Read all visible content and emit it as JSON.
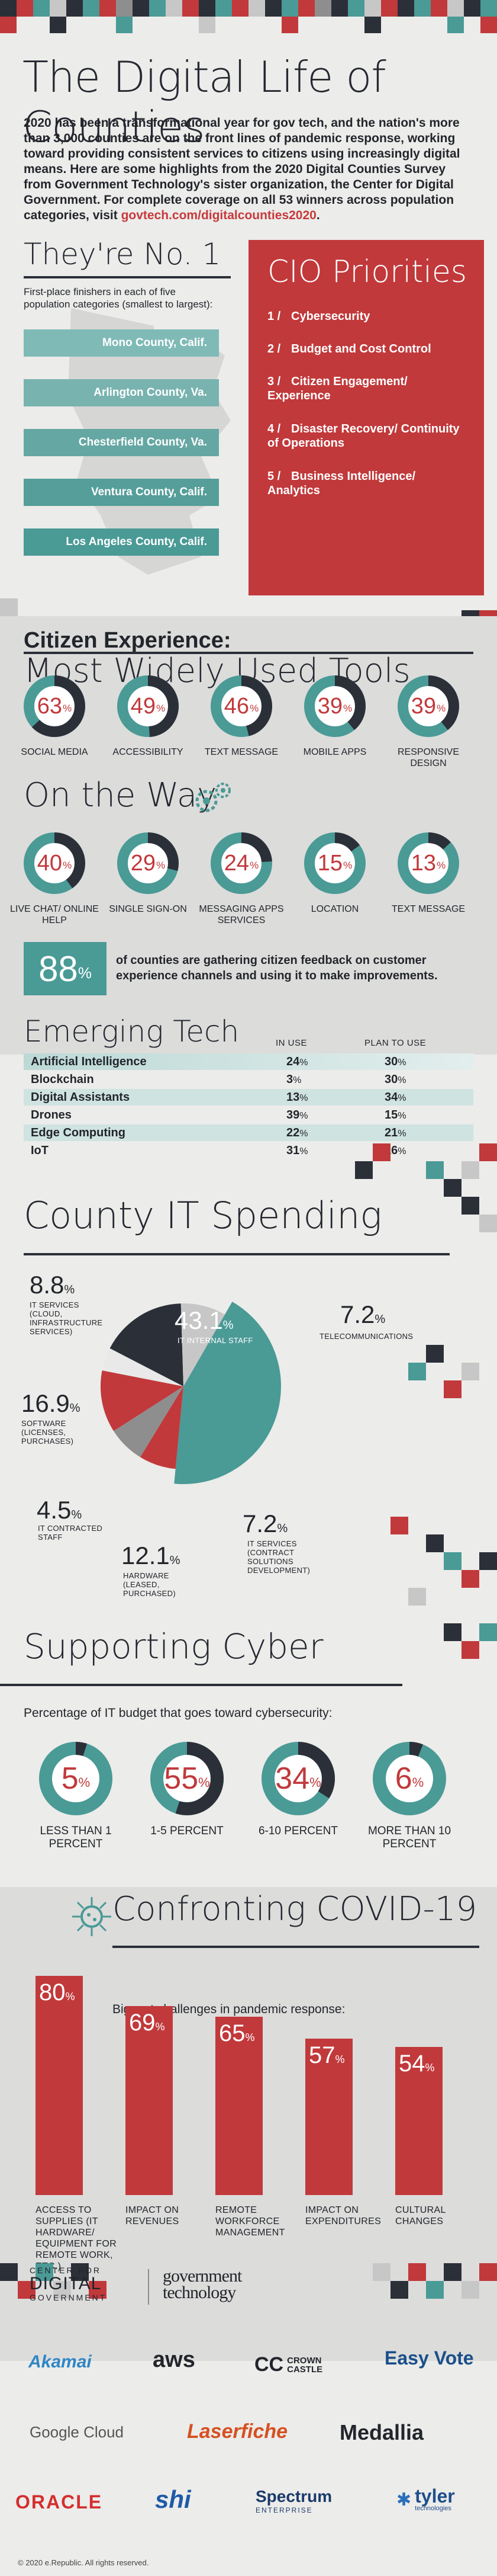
{
  "header": {
    "title": "The Digital Life of Counties",
    "intro_text": "2020 has been a transformational year for gov tech, and the nation's more than 3,000 counties are on the front lines of pandemic response, working toward providing consistent services to citizens using increasingly digital means. Here are some highlights from the 2020 Digital Counties Survey from Government Technology's sister organization, the Center for Digital Government. For complete coverage on all 53 winners across population categories, visit ",
    "intro_link": "govtech.com/digitalcounties2020",
    "intro_end": "."
  },
  "no1": {
    "title": "They're No. 1",
    "subtitle": "First-place finishers in each of five population categories (smallest to largest):",
    "counties": [
      "Mono County, Calif.",
      "Arlington County, Va.",
      "Chesterfield County, Va.",
      "Ventura County, Calif.",
      "Los Angeles County, Calif."
    ]
  },
  "cio": {
    "title": "CIO Priorities",
    "items": [
      {
        "num": "1",
        "label": "Cybersecurity"
      },
      {
        "num": "2",
        "label": "Budget and Cost Control"
      },
      {
        "num": "3",
        "label": "Citizen Engagement/ Experience"
      },
      {
        "num": "4",
        "label": "Disaster Recovery/ Continuity of Operations"
      },
      {
        "num": "5",
        "label": "Business Intelligence/ Analytics"
      }
    ]
  },
  "citizen": {
    "kicker": "Citizen Experience:",
    "title": "Most Widely Used Tools",
    "tools": [
      {
        "value": "63",
        "label": "SOCIAL MEDIA"
      },
      {
        "value": "49",
        "label": "ACCESSIBILITY"
      },
      {
        "value": "46",
        "label": "TEXT MESSAGE"
      },
      {
        "value": "39",
        "label": "MOBILE APPS"
      },
      {
        "value": "39",
        "label": "RESPONSIVE DESIGN"
      }
    ]
  },
  "ontheway": {
    "title": "On the Way",
    "tools": [
      {
        "value": "40",
        "label": "LIVE CHAT/ ONLINE HELP"
      },
      {
        "value": "29",
        "label": "SINGLE SIGN-ON"
      },
      {
        "value": "24",
        "label": "MESSAGING APPS SERVICES"
      },
      {
        "value": "15",
        "label": "LOCATION"
      },
      {
        "value": "13",
        "label": "TEXT MESSAGE"
      }
    ]
  },
  "feedback": {
    "value": "88",
    "pct": "%",
    "text": "of counties are gathering citizen feedback on customer experience channels and using it to make improvements."
  },
  "emerging": {
    "title": "Emerging Tech",
    "col1": "IN USE",
    "col2": "PLAN TO USE",
    "rows": [
      {
        "label": "Artificial Intelligence",
        "in_use": "24",
        "plan": "30"
      },
      {
        "label": "Blockchain",
        "in_use": "3",
        "plan": "30"
      },
      {
        "label": "Digital Assistants",
        "in_use": "13",
        "plan": "34"
      },
      {
        "label": "Drones",
        "in_use": "39",
        "plan": "15"
      },
      {
        "label": "Edge Computing",
        "in_use": "22",
        "plan": "21"
      },
      {
        "label": "IoT",
        "in_use": "31",
        "plan": "16"
      }
    ]
  },
  "spending": {
    "title": "County IT Spending",
    "slices": [
      {
        "value": "43.1",
        "label": "IT INTERNAL STAFF",
        "color": "#4a9a96"
      },
      {
        "value": "7.2",
        "label": "TELECOMMUNICATIONS",
        "color": "#c1393b"
      },
      {
        "value": "7.2",
        "label": "IT SERVICES (CONTRACT SOLUTIONS DEVELOPMENT)",
        "color": "#8e8e8e"
      },
      {
        "value": "12.1",
        "label": "HARDWARE (LEASED, PURCHASED)",
        "color": "#c1393b"
      },
      {
        "value": "4.5",
        "label": "IT CONTRACTED STAFF",
        "color": "#e9e9e9"
      },
      {
        "value": "16.9",
        "label": "SOFTWARE (LICENSES, PURCHASES)",
        "color": "#2b2f38"
      },
      {
        "value": "8.8",
        "label": "IT SERVICES (CLOUD, INFRASTRUCTURE SERVICES)",
        "color": "#c7c7c7"
      }
    ]
  },
  "cyber": {
    "title": "Supporting Cyber",
    "subtitle": "Percentage of IT budget that goes toward cybersecurity:",
    "items": [
      {
        "value": "5",
        "label": "LESS THAN 1 PERCENT"
      },
      {
        "value": "55",
        "label": "1-5 PERCENT"
      },
      {
        "value": "34",
        "label": "6-10 PERCENT"
      },
      {
        "value": "6",
        "label": "MORE THAN 10 PERCENT"
      }
    ]
  },
  "covid": {
    "title": "Confronting COVID-19",
    "subtitle": "Biggest challenges in pandemic response:",
    "bars": [
      {
        "value": "80",
        "label": "ACCESS TO SUPPLIES (IT HARDWARE/ EQUIPMENT FOR REMOTE WORK, ETC.)"
      },
      {
        "value": "69",
        "label": "IMPACT ON REVENUES"
      },
      {
        "value": "65",
        "label": "REMOTE WORKFORCE MANAGEMENT"
      },
      {
        "value": "57",
        "label": "IMPACT ON EXPENDITURES"
      },
      {
        "value": "54",
        "label": "CULTURAL CHANGES"
      }
    ]
  },
  "pct_sign": "%",
  "sponsors": {
    "cdg_line1": "CENTER FOR",
    "cdg_line2": "DIGITAL",
    "cdg_line3": "GOVERNMENT",
    "govtech_line1": "government",
    "govtech_line2": "technology",
    "list": [
      "Akamai",
      "aws",
      "CROWN CASTLE",
      "Easy Vote",
      "Google Cloud",
      "Laserfiche",
      "Medallia",
      "ORACLE",
      "shi",
      "Spectrum",
      "tyler"
    ],
    "spectrum_sub": "ENTERPRISE",
    "tyler_sub": "technologies"
  },
  "footer": {
    "copyright": "© 2020 e.Republic. All rights reserved."
  },
  "colors": {
    "red": "#c1393b",
    "teal": "#4a9a96",
    "dark": "#2b2f38",
    "gray": "#c7c7c7",
    "bg": "#ececea"
  }
}
